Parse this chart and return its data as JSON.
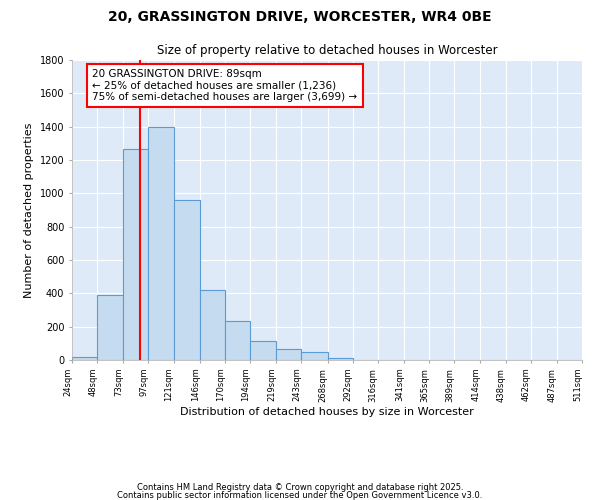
{
  "title1": "20, GRASSINGTON DRIVE, WORCESTER, WR4 0BE",
  "title2": "Size of property relative to detached houses in Worcester",
  "xlabel": "Distribution of detached houses by size in Worcester",
  "ylabel": "Number of detached properties",
  "bin_edges": [
    24,
    48,
    73,
    97,
    121,
    146,
    170,
    194,
    219,
    243,
    268,
    292,
    316,
    341,
    365,
    389,
    414,
    438,
    462,
    487,
    511
  ],
  "bar_heights": [
    20,
    390,
    1265,
    1400,
    960,
    420,
    235,
    115,
    68,
    48,
    12,
    3,
    0,
    0,
    0,
    0,
    0,
    0,
    0,
    0
  ],
  "bar_color": "#c5dcf0",
  "bar_edge_color": "#5b9bd5",
  "vline_x": 89,
  "vline_color": "red",
  "annotation_line1": "20 GRASSINGTON DRIVE: 89sqm",
  "annotation_line2": "← 25% of detached houses are smaller (1,236)",
  "annotation_line3": "75% of semi-detached houses are larger (3,699) →",
  "annotation_box_color": "white",
  "annotation_box_edge_color": "red",
  "ylim": [
    0,
    1800
  ],
  "xlim_left": 24,
  "xlim_right": 511,
  "bg_color": "#deeaf7",
  "footer1": "Contains HM Land Registry data © Crown copyright and database right 2025.",
  "footer2": "Contains public sector information licensed under the Open Government Licence v3.0."
}
